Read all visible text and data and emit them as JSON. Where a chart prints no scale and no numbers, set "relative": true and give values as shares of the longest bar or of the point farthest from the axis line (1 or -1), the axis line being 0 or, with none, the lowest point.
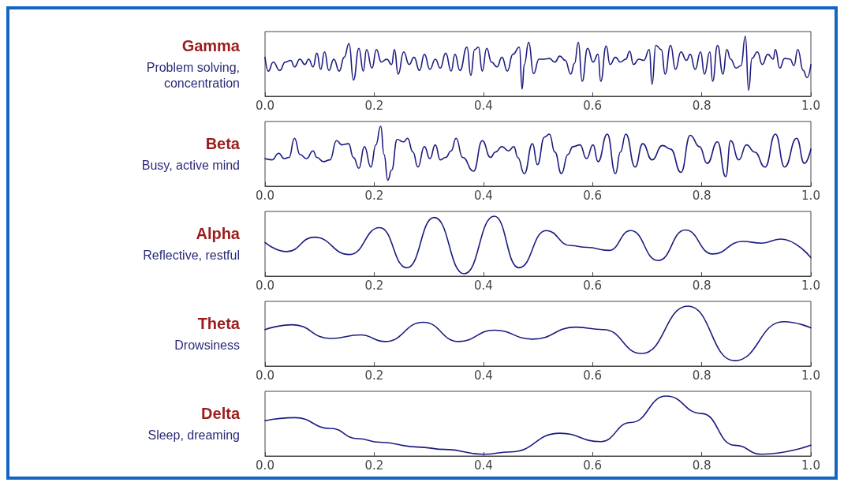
{
  "chart_data": [
    {
      "type": "line",
      "title": "Gamma",
      "subtitle": "Problem solving, concentration",
      "relative": true,
      "color": "#1c1c80",
      "marker": "none",
      "line_style": "solid",
      "grid": false,
      "tick_labels": "x",
      "xlim": [
        0,
        1
      ],
      "xticks": [
        {
          "value": 0,
          "label": "0.0"
        },
        {
          "value": 0.2,
          "label": "0.2"
        },
        {
          "value": 0.4,
          "label": "0.4"
        },
        {
          "value": 0.6,
          "label": "0.6"
        },
        {
          "value": 0.8,
          "label": "0.8"
        },
        {
          "value": 1,
          "label": "1.0"
        }
      ],
      "x": [
        0,
        0.006,
        0.015,
        0.027,
        0.037,
        0.047,
        0.054,
        0.064,
        0.073,
        0.08,
        0.088,
        0.095,
        0.102,
        0.109,
        0.117,
        0.126,
        0.136,
        0.145,
        0.154,
        0.162,
        0.172,
        0.18,
        0.186,
        0.196,
        0.204,
        0.213,
        0.223,
        0.232,
        0.237,
        0.244,
        0.254,
        0.264,
        0.273,
        0.283,
        0.292,
        0.302,
        0.312,
        0.321,
        0.331,
        0.341,
        0.348,
        0.357,
        0.37,
        0.377,
        0.384,
        0.391,
        0.398,
        0.406,
        0.415,
        0.425,
        0.434,
        0.444,
        0.454,
        0.466,
        0.471,
        0.475,
        0.483,
        0.492,
        0.502,
        0.512,
        0.521,
        0.531,
        0.54,
        0.55,
        0.56,
        0.567,
        0.574,
        0.581,
        0.591,
        0.601,
        0.61,
        0.615,
        0.625,
        0.632,
        0.642,
        0.651,
        0.661,
        0.668,
        0.675,
        0.685,
        0.694,
        0.704,
        0.709,
        0.716,
        0.726,
        0.733,
        0.743,
        0.752,
        0.762,
        0.772,
        0.779,
        0.788,
        0.798,
        0.805,
        0.815,
        0.82,
        0.829,
        0.839,
        0.846,
        0.853,
        0.863,
        0.872,
        0.88,
        0.886,
        0.892,
        0.902,
        0.911,
        0.921,
        0.931,
        0.935,
        0.943,
        0.952,
        0.962,
        0.969,
        0.976,
        0.986,
        0.993,
        1.0
      ],
      "values": [
        0.65,
        0.42,
        0.57,
        0.43,
        0.57,
        0.6,
        0.49,
        0.62,
        0.53,
        0.62,
        0.49,
        0.72,
        0.45,
        0.74,
        0.43,
        0.62,
        0.42,
        0.65,
        0.88,
        0.27,
        0.8,
        0.42,
        0.78,
        0.47,
        0.78,
        0.57,
        0.62,
        0.53,
        0.78,
        0.37,
        0.74,
        0.53,
        0.65,
        0.43,
        0.7,
        0.45,
        0.62,
        0.47,
        0.72,
        0.42,
        0.7,
        0.43,
        0.82,
        0.35,
        0.78,
        0.82,
        0.42,
        0.8,
        0.57,
        0.49,
        0.65,
        0.42,
        0.7,
        0.82,
        0.12,
        0.53,
        0.9,
        0.38,
        0.62,
        0.62,
        0.63,
        0.57,
        0.67,
        0.6,
        0.37,
        0.55,
        0.9,
        0.25,
        0.8,
        0.57,
        0.7,
        0.25,
        0.84,
        0.53,
        0.65,
        0.57,
        0.62,
        0.75,
        0.53,
        0.62,
        0.6,
        0.78,
        0.2,
        0.85,
        0.78,
        0.37,
        0.85,
        0.45,
        0.74,
        0.6,
        0.7,
        0.45,
        0.74,
        0.37,
        0.74,
        0.25,
        0.85,
        0.37,
        0.78,
        0.62,
        0.47,
        0.51,
        1.0,
        0.1,
        0.63,
        0.74,
        0.53,
        0.7,
        0.62,
        0.78,
        0.47,
        0.63,
        0.62,
        0.51,
        0.78,
        0.43,
        0.31,
        0.53
      ]
    },
    {
      "type": "line",
      "title": "Beta",
      "subtitle": "Busy, active mind",
      "relative": true,
      "color": "#1c1c80",
      "marker": "none",
      "line_style": "solid",
      "grid": false,
      "tick_labels": "x",
      "xlim": [
        0,
        1
      ],
      "xticks": [
        {
          "value": 0,
          "label": "0.0"
        },
        {
          "value": 0.2,
          "label": "0.2"
        },
        {
          "value": 0.4,
          "label": "0.4"
        },
        {
          "value": 0.6,
          "label": "0.6"
        },
        {
          "value": 0.8,
          "label": "0.8"
        },
        {
          "value": 1,
          "label": "1.0"
        }
      ],
      "x": [
        0,
        0.013,
        0.025,
        0.035,
        0.044,
        0.054,
        0.064,
        0.076,
        0.088,
        0.095,
        0.107,
        0.119,
        0.131,
        0.141,
        0.153,
        0.162,
        0.172,
        0.182,
        0.194,
        0.203,
        0.212,
        0.218,
        0.225,
        0.232,
        0.242,
        0.254,
        0.261,
        0.271,
        0.28,
        0.292,
        0.302,
        0.312,
        0.321,
        0.331,
        0.341,
        0.35,
        0.362,
        0.382,
        0.398,
        0.413,
        0.422,
        0.434,
        0.446,
        0.456,
        0.463,
        0.475,
        0.49,
        0.499,
        0.512,
        0.521,
        0.531,
        0.543,
        0.555,
        0.564,
        0.577,
        0.589,
        0.601,
        0.61,
        0.627,
        0.642,
        0.651,
        0.661,
        0.678,
        0.692,
        0.709,
        0.728,
        0.743,
        0.762,
        0.779,
        0.796,
        0.81,
        0.829,
        0.844,
        0.853,
        0.868,
        0.882,
        0.897,
        0.916,
        0.935,
        0.952,
        0.974,
        0.988,
        1.0
      ],
      "values": [
        0.46,
        0.44,
        0.55,
        0.46,
        0.48,
        0.8,
        0.53,
        0.46,
        0.59,
        0.48,
        0.41,
        0.44,
        0.76,
        0.69,
        0.71,
        0.48,
        0.3,
        0.66,
        0.32,
        0.69,
        1.0,
        0.53,
        0.1,
        0.27,
        0.78,
        0.74,
        0.8,
        0.57,
        0.32,
        0.66,
        0.46,
        0.69,
        0.44,
        0.48,
        0.59,
        0.8,
        0.48,
        0.25,
        0.76,
        0.48,
        0.57,
        0.66,
        0.59,
        0.66,
        0.48,
        0.21,
        0.71,
        0.36,
        0.82,
        0.87,
        0.57,
        0.21,
        0.53,
        0.66,
        0.69,
        0.46,
        0.69,
        0.41,
        0.87,
        0.21,
        0.57,
        0.87,
        0.32,
        0.71,
        0.44,
        0.68,
        0.62,
        0.23,
        0.85,
        0.66,
        0.38,
        0.74,
        0.16,
        0.76,
        0.44,
        0.69,
        0.57,
        0.32,
        0.87,
        0.32,
        0.8,
        0.38,
        0.62
      ]
    },
    {
      "type": "line",
      "title": "Alpha",
      "subtitle": "Reflective, restful",
      "relative": true,
      "color": "#1c1c80",
      "marker": "none",
      "line_style": "solid",
      "grid": false,
      "tick_labels": "x",
      "xlim": [
        0,
        1
      ],
      "xticks": [
        {
          "value": 0,
          "label": "0.0"
        },
        {
          "value": 0.2,
          "label": "0.2"
        },
        {
          "value": 0.4,
          "label": "0.4"
        },
        {
          "value": 0.6,
          "label": "0.6"
        },
        {
          "value": 0.8,
          "label": "0.8"
        },
        {
          "value": 1,
          "label": "1.0"
        }
      ],
      "x": [
        0,
        0.04,
        0.09,
        0.155,
        0.21,
        0.26,
        0.31,
        0.365,
        0.42,
        0.465,
        0.515,
        0.56,
        0.59,
        0.63,
        0.67,
        0.72,
        0.77,
        0.82,
        0.875,
        0.91,
        0.945,
        1.0
      ],
      "values": [
        0.56,
        0.41,
        0.65,
        0.36,
        0.81,
        0.14,
        0.98,
        0.04,
        1.0,
        0.14,
        0.76,
        0.51,
        0.48,
        0.43,
        0.76,
        0.26,
        0.77,
        0.37,
        0.58,
        0.55,
        0.62,
        0.31
      ]
    },
    {
      "type": "line",
      "title": "Theta",
      "subtitle": "Drowsiness",
      "relative": true,
      "color": "#1c1c80",
      "marker": "none",
      "line_style": "solid",
      "grid": false,
      "tick_labels": "x",
      "xlim": [
        0,
        1
      ],
      "xticks": [
        {
          "value": 0,
          "label": "0.0"
        },
        {
          "value": 0.2,
          "label": "0.2"
        },
        {
          "value": 0.4,
          "label": "0.4"
        },
        {
          "value": 0.6,
          "label": "0.6"
        },
        {
          "value": 0.8,
          "label": "0.8"
        },
        {
          "value": 1,
          "label": "1.0"
        }
      ],
      "x": [
        0,
        0.05,
        0.12,
        0.175,
        0.22,
        0.29,
        0.355,
        0.42,
        0.49,
        0.57,
        0.62,
        0.69,
        0.775,
        0.86,
        0.95,
        1.0
      ],
      "values": [
        0.61,
        0.69,
        0.46,
        0.52,
        0.41,
        0.73,
        0.41,
        0.6,
        0.45,
        0.65,
        0.61,
        0.21,
        1.0,
        0.09,
        0.74,
        0.64
      ]
    },
    {
      "type": "line",
      "title": "Delta",
      "subtitle": "Sleep, dreaming",
      "relative": true,
      "color": "#1c1c80",
      "marker": "none",
      "line_style": "solid",
      "grid": false,
      "tick_labels": "x",
      "xlim": [
        0,
        1
      ],
      "xticks": [
        {
          "value": 0,
          "label": "0.0"
        },
        {
          "value": 0.2,
          "label": "0.2"
        },
        {
          "value": 0.4,
          "label": "0.4"
        },
        {
          "value": 0.6,
          "label": "0.6"
        },
        {
          "value": 0.8,
          "label": "0.8"
        },
        {
          "value": 1,
          "label": "1.0"
        }
      ],
      "x": [
        0,
        0.055,
        0.12,
        0.17,
        0.21,
        0.28,
        0.33,
        0.4,
        0.45,
        0.54,
        0.615,
        0.67,
        0.735,
        0.8,
        0.86,
        0.91,
        1.0
      ],
      "values": [
        0.59,
        0.64,
        0.46,
        0.29,
        0.23,
        0.15,
        0.11,
        0.03,
        0.07,
        0.38,
        0.24,
        0.56,
        1.0,
        0.71,
        0.18,
        0.03,
        0.18
      ]
    }
  ]
}
